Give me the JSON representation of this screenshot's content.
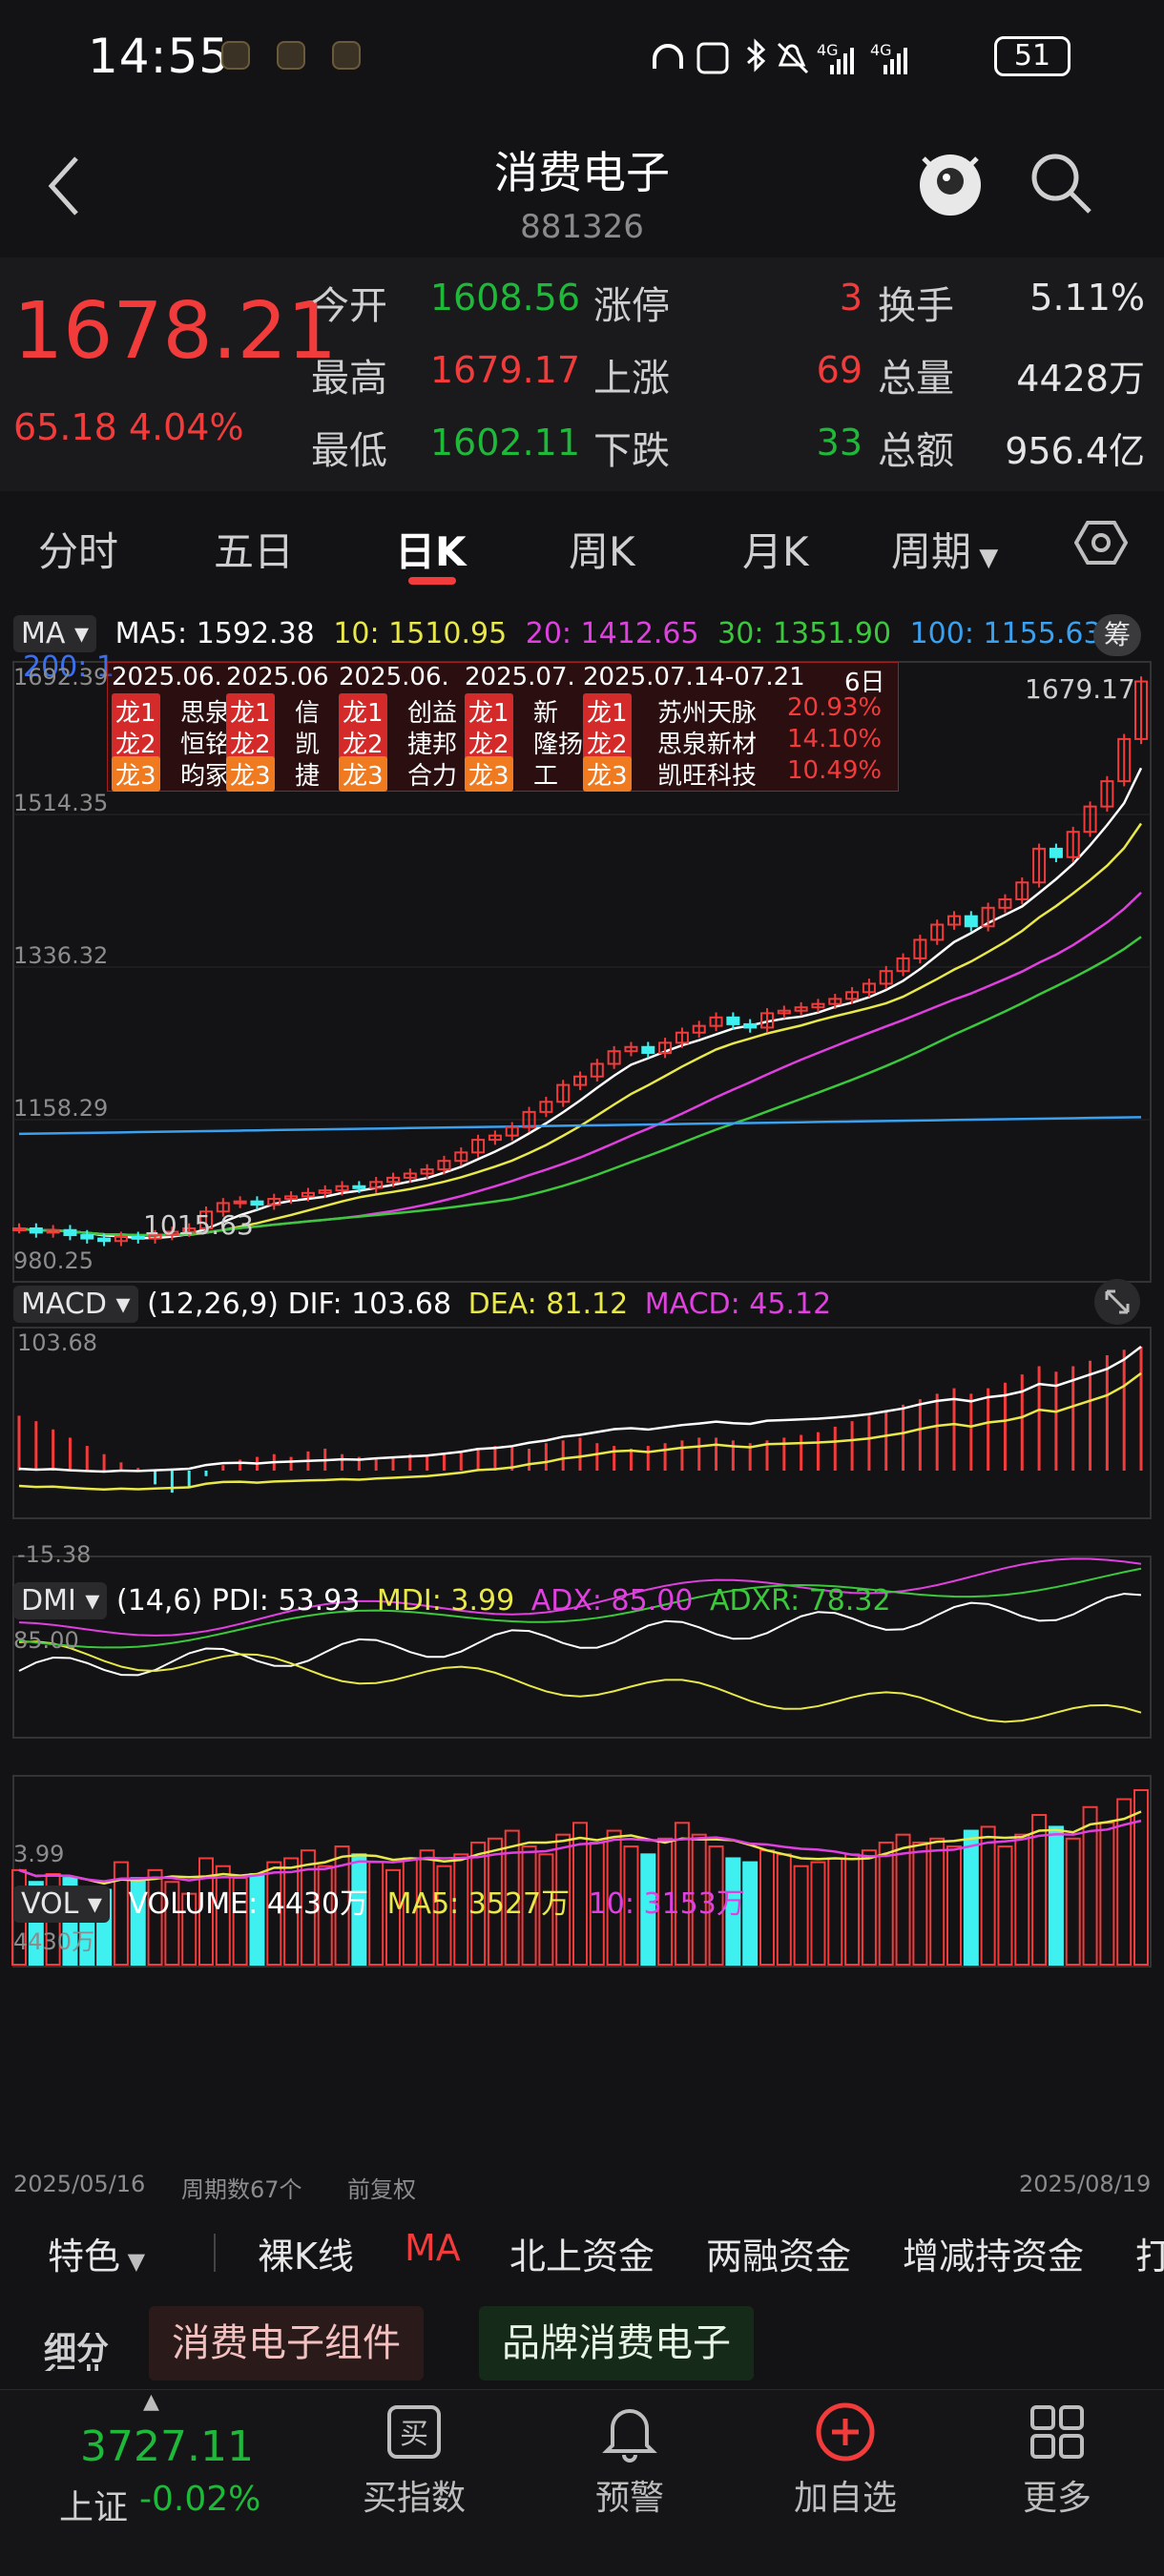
{
  "status_bar": {
    "time": "14:55",
    "network": "4G",
    "battery": "51"
  },
  "header": {
    "title": "消费电子",
    "code": "881326"
  },
  "quote": {
    "price": "1678.21",
    "change": "65.18  4.04%",
    "rows": [
      {
        "l1": "今开",
        "v1": "1608.56",
        "l2": "涨停",
        "v2": "3",
        "l3": "换手",
        "v3": "5.11%"
      },
      {
        "l1": "最高",
        "v1": "1679.17",
        "l2": "上涨",
        "v2": "69",
        "l3": "总量",
        "v3": "4428万"
      },
      {
        "l1": "最低",
        "v1": "1602.11",
        "l2": "下跌",
        "v2": "33",
        "l3": "总额",
        "v3": "956.4亿"
      }
    ]
  },
  "tabs": [
    "分时",
    "五日",
    "日K",
    "周K",
    "月K",
    "周期"
  ],
  "ma_header": {
    "name": "MA",
    "ma5": "MA5: 1592.38",
    "ma10": "10: 1510.95",
    "ma20": "20: 1412.65",
    "ma30": "30: 1351.90",
    "ma100": "100: 1155.63",
    "ma200": "200: 1",
    "btn": "筹"
  },
  "kline_axis": [
    "1692.39",
    "1514.35",
    "1336.32",
    "1158.29",
    "980.25"
  ],
  "kline_labels": {
    "high": "1679.17",
    "low": "1015.63"
  },
  "dragon_table": {
    "headers": [
      "2025.06.",
      "2025.06",
      "2025.06.",
      "2025.07.",
      "2025.07.14-07.21",
      "6日"
    ],
    "row_tags": [
      "龙1",
      "龙2",
      "龙3"
    ],
    "cols": [
      [
        "思泉",
        "恒铭",
        "昀冢"
      ],
      [
        "信",
        "凯",
        "捷"
      ],
      [
        "创益",
        "捷邦",
        "合力"
      ],
      [
        "新",
        "隆扬",
        "工"
      ]
    ],
    "last": [
      {
        "name": "苏州天脉",
        "pct": "20.93%"
      },
      {
        "name": "思泉新材",
        "pct": "14.10%"
      },
      {
        "name": "凯旺科技",
        "pct": "10.49%"
      }
    ]
  },
  "macd": {
    "name": "MACD",
    "params": "(12,26,9)",
    "dif": "DIF: 103.68",
    "dea": "DEA: 81.12",
    "macd": "MACD: 45.12",
    "top": "103.68",
    "bottom": "-15.38"
  },
  "dmi": {
    "name": "DMI",
    "params": "(14,6)",
    "pdi": "PDI: 53.93",
    "mdi": "MDI: 3.99",
    "adx": "ADX: 85.00",
    "adxr": "ADXR: 78.32",
    "top": "85.00",
    "bottom": "3.99"
  },
  "vol": {
    "name": "VOL",
    "volume": "VOLUME: 4430万",
    "ma5": "MA5: 3527万",
    "ma10": "10: 3153万",
    "top": "4430万"
  },
  "footer_axis": {
    "start": "2025/05/16",
    "count": "周期数67个",
    "adjust": "前复权",
    "end": "2025/08/19"
  },
  "features": [
    "特色",
    "裸K线",
    "MA",
    "北上资金",
    "两融资金",
    "增减持资金",
    "打"
  ],
  "tags": {
    "side": "细分行业",
    "t1": "消费电子组件",
    "t2": "品牌消费电子"
  },
  "bottom_nav": {
    "index_value": "3727.11",
    "index_name": "上证",
    "index_change": "-0.02%",
    "items": [
      "买指数",
      "预警",
      "加自选",
      "更多"
    ]
  },
  "colors": {
    "up": "#f23b3b",
    "down": "#3ff0f0",
    "ma5": "#ffffff",
    "ma10": "#e8e84a",
    "ma20": "#e040e0",
    "ma30": "#3cc83c",
    "ma100": "#3aa0f0"
  },
  "chart_data": {
    "type": "candlestick",
    "x_range": [
      "2025/05/16",
      "2025/08/19"
    ],
    "y_range": [
      980.25,
      1692.39
    ],
    "closes": [
      1030,
      1025,
      1028,
      1022,
      1018,
      1015,
      1020,
      1018,
      1022,
      1026,
      1030,
      1050,
      1060,
      1062,
      1058,
      1065,
      1068,
      1072,
      1075,
      1080,
      1078,
      1085,
      1090,
      1095,
      1100,
      1110,
      1120,
      1135,
      1140,
      1150,
      1168,
      1180,
      1200,
      1210,
      1225,
      1240,
      1245,
      1238,
      1250,
      1262,
      1270,
      1280,
      1272,
      1268,
      1285,
      1288,
      1292,
      1296,
      1302,
      1310,
      1320,
      1335,
      1350,
      1372,
      1390,
      1400,
      1388,
      1410,
      1420,
      1440,
      1480,
      1470,
      1500,
      1530,
      1560,
      1610,
      1678.21
    ],
    "macd_hist": [
      20,
      18,
      15,
      12,
      9,
      6,
      3,
      1,
      -5,
      -8,
      -6,
      -2,
      2,
      4,
      5,
      6,
      5,
      7,
      8,
      6,
      5,
      4,
      5,
      6,
      5,
      6,
      7,
      8,
      9,
      9,
      8,
      10,
      11,
      12,
      10,
      9,
      8,
      9,
      10,
      11,
      12,
      12,
      11,
      10,
      11,
      12,
      13,
      14,
      16,
      18,
      20,
      22,
      24,
      26,
      28,
      30,
      28,
      30,
      32,
      35,
      38,
      36,
      38,
      40,
      42,
      44,
      45.12
    ],
    "volume": [
      2400,
      2100,
      2300,
      2200,
      1800,
      1900,
      2600,
      2200,
      2400,
      2100,
      1800,
      2700,
      2500,
      2200,
      2300,
      2600,
      2700,
      2900,
      2500,
      3000,
      2800,
      2600,
      2400,
      2700,
      2900,
      2500,
      2800,
      3100,
      3200,
      3400,
      3000,
      2800,
      3300,
      3600,
      3100,
      3400,
      3000,
      2800,
      3200,
      3600,
      3300,
      3000,
      2700,
      2600,
      2900,
      2800,
      2500,
      2600,
      2700,
      2800,
      2900,
      3100,
      3300,
      3100,
      3200,
      3000,
      3400,
      3500,
      3000,
      3300,
      3800,
      3500,
      3200,
      4000,
      3600,
      4200,
      4430
    ]
  }
}
